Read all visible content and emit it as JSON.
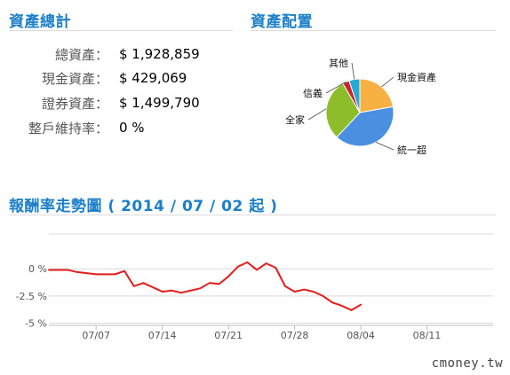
{
  "summary": {
    "title": "資產總計",
    "rows": [
      {
        "label": "總資產：",
        "value": "$ 1,928,859"
      },
      {
        "label": "現金資產：",
        "value": "$ 429,069"
      },
      {
        "label": "證券資產：",
        "value": "$ 1,499,790"
      },
      {
        "label": "整戶維持率：",
        "value": "0 %"
      }
    ]
  },
  "allocation": {
    "title": "資產配置"
  },
  "trend": {
    "title": "報酬率走勢圖 ( 2014 / 07 / 02 起 )"
  },
  "watermark": "cmoney.tw",
  "chart_data": [
    {
      "type": "pie",
      "slices": [
        {
          "label": "現金資產",
          "value": 22.2,
          "color": "#f7b143"
        },
        {
          "label": "統一超",
          "value": 39.8,
          "color": "#4a8fe0"
        },
        {
          "label": "全家",
          "value": 29.6,
          "color": "#8dbd2b"
        },
        {
          "label": "信義",
          "value": 3.2,
          "color": "#c8232c"
        },
        {
          "label": "其他",
          "value": 5.2,
          "color": "#27a9d6"
        }
      ]
    },
    {
      "type": "line",
      "series": [
        {
          "color": "#e31c1c",
          "points": [
            [
              "2014-07-02",
              -0.1
            ],
            [
              "2014-07-03",
              -0.1
            ],
            [
              "2014-07-04",
              -0.1
            ],
            [
              "2014-07-05",
              -0.3
            ],
            [
              "2014-07-06",
              -0.4
            ],
            [
              "2014-07-07",
              -0.5
            ],
            [
              "2014-07-08",
              -0.5
            ],
            [
              "2014-07-09",
              -0.5
            ],
            [
              "2014-07-10",
              -0.2
            ],
            [
              "2014-07-11",
              -1.6
            ],
            [
              "2014-07-12",
              -1.3
            ],
            [
              "2014-07-13",
              -1.7
            ],
            [
              "2014-07-14",
              -2.1
            ],
            [
              "2014-07-15",
              -2.0
            ],
            [
              "2014-07-16",
              -2.2
            ],
            [
              "2014-07-17",
              -2.0
            ],
            [
              "2014-07-18",
              -1.8
            ],
            [
              "2014-07-19",
              -1.3
            ],
            [
              "2014-07-20",
              -1.4
            ],
            [
              "2014-07-21",
              -0.7
            ],
            [
              "2014-07-22",
              0.2
            ],
            [
              "2014-07-23",
              0.6
            ],
            [
              "2014-07-24",
              -0.1
            ],
            [
              "2014-07-25",
              0.5
            ],
            [
              "2014-07-26",
              0.1
            ],
            [
              "2014-07-27",
              -1.6
            ],
            [
              "2014-07-28",
              -2.1
            ],
            [
              "2014-07-29",
              -1.9
            ],
            [
              "2014-07-30",
              -2.1
            ],
            [
              "2014-07-31",
              -2.5
            ],
            [
              "2014-08-01",
              -3.1
            ],
            [
              "2014-08-02",
              -3.4
            ],
            [
              "2014-08-03",
              -3.8
            ],
            [
              "2014-08-04",
              -3.3
            ]
          ]
        }
      ],
      "xticks": [
        {
          "date": "2014-07-07",
          "label": "07/07"
        },
        {
          "date": "2014-07-14",
          "label": "07/14"
        },
        {
          "date": "2014-07-21",
          "label": "07/21"
        },
        {
          "date": "2014-07-28",
          "label": "07/28"
        },
        {
          "date": "2014-08-04",
          "label": "08/04"
        },
        {
          "date": "2014-08-11",
          "label": "08/11"
        }
      ],
      "yticks": [
        {
          "value": 0,
          "label": "0 %"
        },
        {
          "value": -2.5,
          "label": "-2.5 %"
        },
        {
          "value": -5,
          "label": "-5 %"
        }
      ],
      "xlim": [
        "2014-07-02",
        "2014-08-18"
      ],
      "ylim": [
        -5.2,
        3.2
      ],
      "grid": true
    }
  ]
}
